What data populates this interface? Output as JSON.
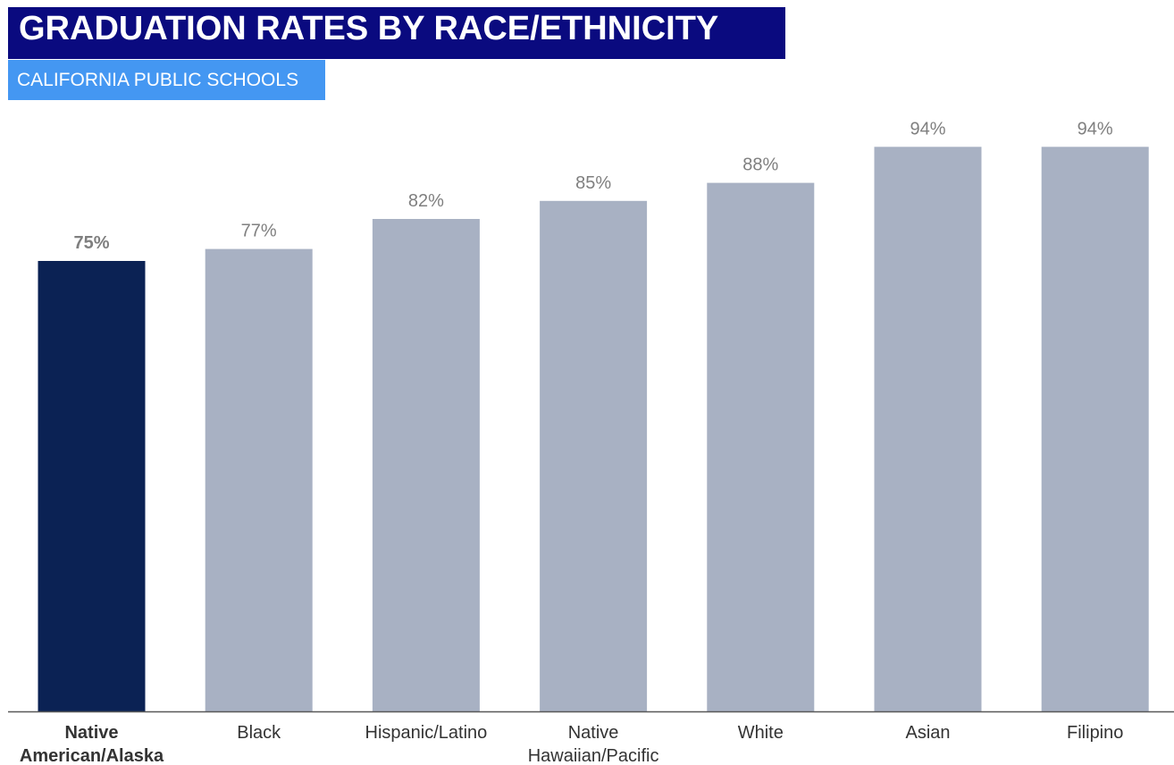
{
  "header": {
    "title": "GRADUATION RATES BY RACE/ETHNICITY",
    "subtitle": "CALIFORNIA PUBLIC SCHOOLS"
  },
  "colors": {
    "title_bg": "#0a0a7f",
    "subtitle_bg": "#4497f2",
    "highlight_bar": "#0b2254",
    "bar": "#a8b1c3",
    "value_label": "#7f7f7f",
    "category_label": "#333333",
    "axis": "#595959"
  },
  "chart_data": {
    "type": "bar",
    "title": "GRADUATION RATES BY RACE/ETHNICITY",
    "subtitle": "CALIFORNIA PUBLIC SCHOOLS",
    "categories": [
      [
        "Native",
        "American/Alaska"
      ],
      [
        "Black"
      ],
      [
        "Hispanic/Latino"
      ],
      [
        "Native",
        "Hawaiian/Pacific"
      ],
      [
        "White"
      ],
      [
        "Asian"
      ],
      [
        "Filipino"
      ]
    ],
    "values": [
      75,
      77,
      82,
      85,
      88,
      94,
      94
    ],
    "value_labels": [
      "75%",
      "77%",
      "82%",
      "85%",
      "88%",
      "94%",
      "94%"
    ],
    "highlighted_index": 0,
    "xlabel": "",
    "ylabel": "",
    "grid": false,
    "legend": "none"
  }
}
